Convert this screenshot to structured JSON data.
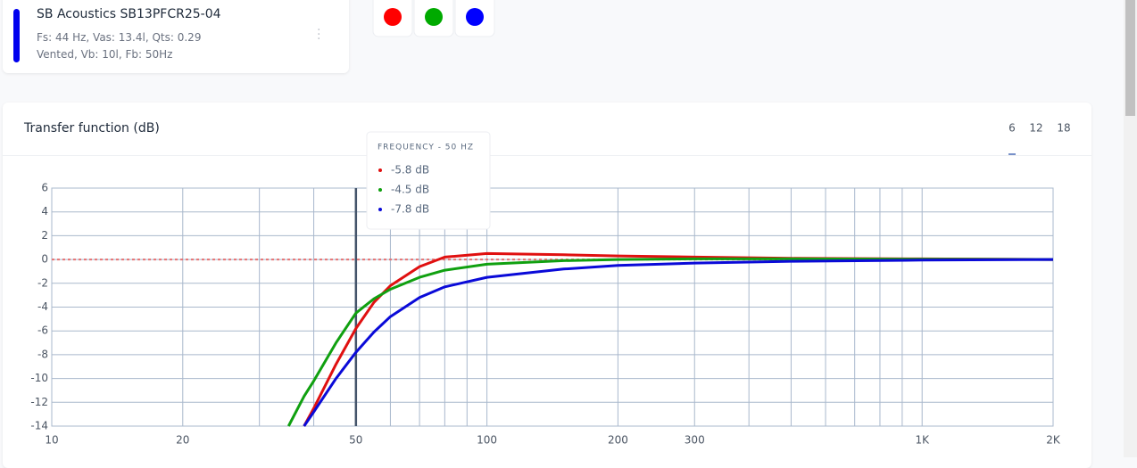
{
  "card": {
    "title": "SB Acoustics SB13PFCR25-04",
    "line1": "Fs: 44 Hz, Vas: 13.4l, Qts: 0.29",
    "line2": "Vented, Vb: 10l, Fb: 50Hz",
    "color": "#0000ee"
  },
  "color_buttons": [
    "#ff0000",
    "#00aa00",
    "#0000ff"
  ],
  "tabs": [
    "6",
    "12",
    "18"
  ],
  "tooltip": {
    "title": "FREQUENCY - 50 HZ",
    "items": [
      {
        "label": "-5.8 dB",
        "color": "#e01010"
      },
      {
        "label": "-4.5 dB",
        "color": "#10a010"
      },
      {
        "label": "-7.8 dB",
        "color": "#0a0ad8"
      }
    ]
  },
  "chart_data": {
    "type": "line",
    "title": "Transfer function (dB)",
    "xscale": "log",
    "x": [
      35,
      38,
      40,
      45,
      50,
      55,
      60,
      70,
      80,
      100,
      150,
      200,
      300,
      500,
      1000,
      2000
    ],
    "series": [
      {
        "color": "#e01010",
        "values": [
          null,
          -14,
          -12.5,
          -8.8,
          -5.8,
          -3.6,
          -2.2,
          -0.6,
          0.2,
          0.5,
          0.4,
          0.3,
          0.2,
          0.1,
          0.05,
          0
        ]
      },
      {
        "color": "#10a010",
        "values": [
          -14,
          -11.5,
          -10.2,
          -7,
          -4.5,
          -3.3,
          -2.5,
          -1.5,
          -0.9,
          -0.4,
          -0.1,
          0,
          0.05,
          0.05,
          0.02,
          0
        ]
      },
      {
        "color": "#0a0ad8",
        "values": [
          null,
          -14,
          -12.8,
          -10,
          -7.8,
          -6.1,
          -4.8,
          -3.2,
          -2.3,
          -1.5,
          -0.8,
          -0.5,
          -0.3,
          -0.15,
          -0.05,
          0
        ]
      }
    ],
    "xlim": [
      10,
      2000
    ],
    "xticks": [
      10,
      20,
      50,
      100,
      200,
      300,
      {
        "value": 1000,
        "label": "1K"
      },
      {
        "value": 2000,
        "label": "2K"
      }
    ],
    "x_minor_ticks": [
      30,
      40,
      60,
      70,
      80,
      90,
      400,
      500,
      600,
      700,
      800,
      900
    ],
    "ylim": [
      -14,
      6
    ],
    "yticks": [
      6,
      4,
      2,
      0,
      -2,
      -4,
      -6,
      -8,
      -10,
      -12,
      -14
    ],
    "grid": true,
    "reference_line": {
      "value": 0,
      "color": "#e57373"
    },
    "cursor_x": 50
  }
}
